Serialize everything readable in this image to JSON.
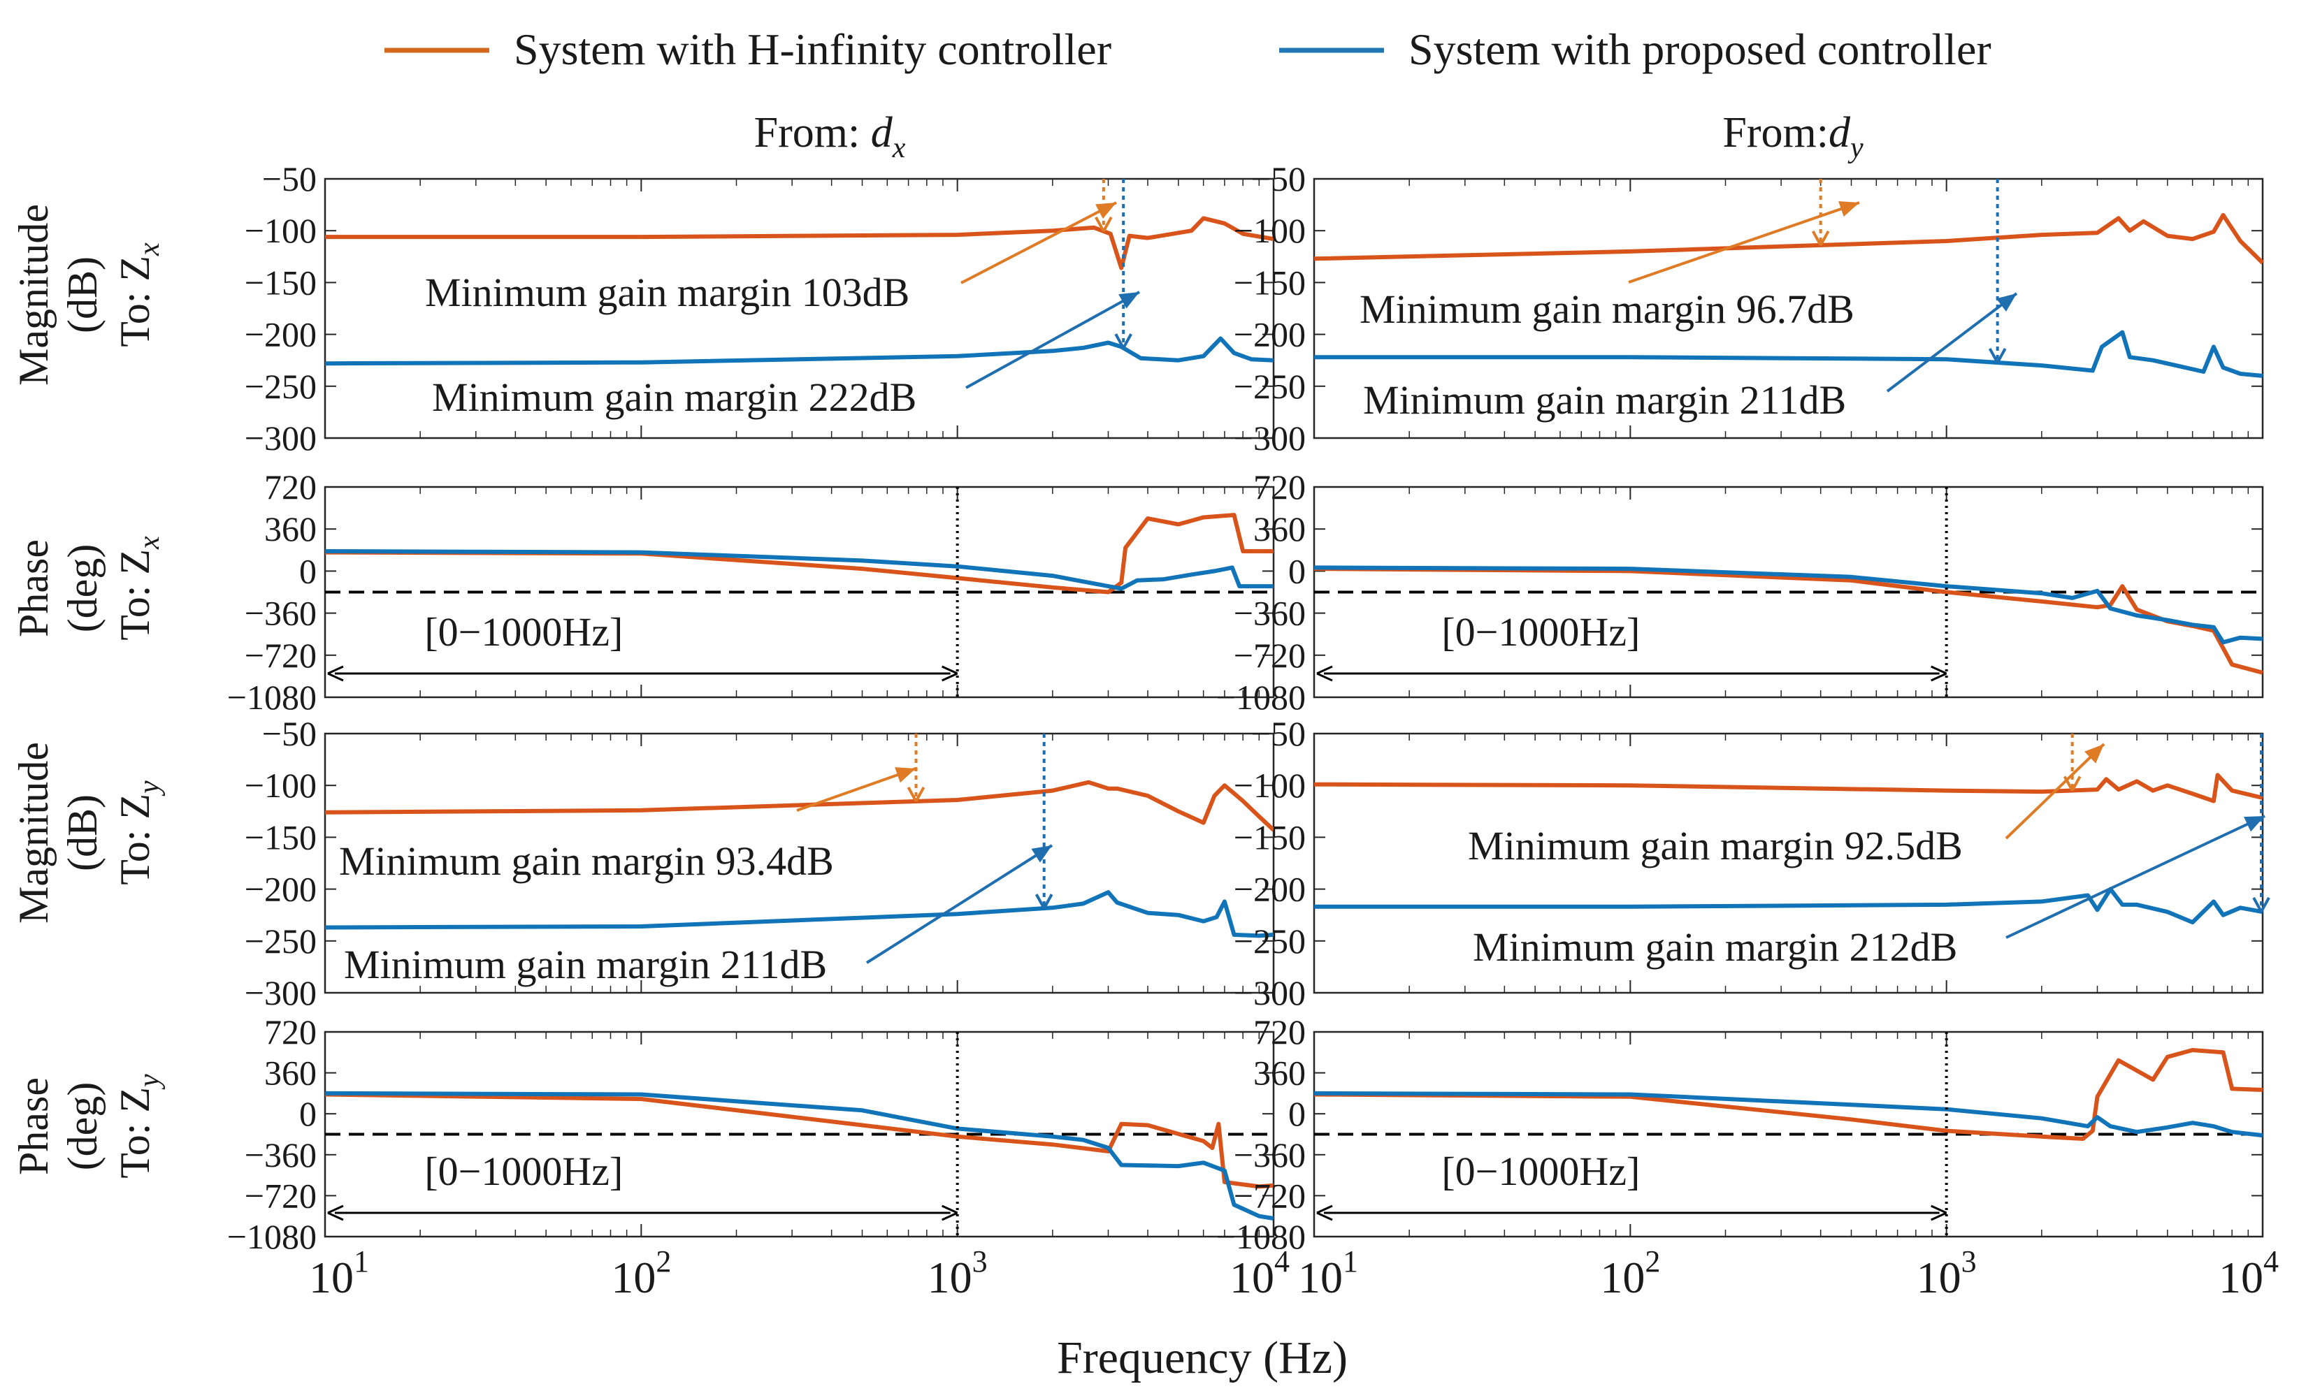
{
  "legend": [
    {
      "label": "System with H-infinity controller",
      "color": "#d2691e"
    },
    {
      "label": "System with proposed controller",
      "color": "#1f77b4"
    }
  ],
  "colors": {
    "hinf": "#d9541a",
    "prop": "#1173b8",
    "hinf_marker": "#e07b25",
    "prop_marker": "#1f6fb0",
    "range": "#000000"
  },
  "columns": [
    {
      "from_prefix": "From: ",
      "from_var": "d",
      "from_sub": "x"
    },
    {
      "from_prefix": "From:",
      "from_var": "d",
      "from_sub": "y"
    }
  ],
  "x_axis": {
    "label": "Frequency (Hz)",
    "ticks": [
      {
        "value": 10,
        "base": "10",
        "exp": "1"
      },
      {
        "value": 100,
        "base": "10",
        "exp": "2"
      },
      {
        "value": 1000,
        "base": "10",
        "exp": "3"
      },
      {
        "value": 10000,
        "base": "10",
        "exp": "4"
      }
    ]
  },
  "rows": [
    {
      "ylabel": "Magnitude",
      "yunit": "(dB)",
      "to_prefix": "To: ",
      "to_var": "Z",
      "to_sub": "x",
      "ylim": [
        -300,
        -50
      ],
      "ticks": [
        "−50",
        "−100",
        "−150",
        "−200",
        "−250",
        "−300"
      ]
    },
    {
      "ylabel": "Phase",
      "yunit": "(deg)",
      "to_prefix": "To: ",
      "to_var": "Z",
      "to_sub": "x",
      "ylim": [
        -1080,
        720
      ],
      "ticks": [
        "720",
        "360",
        "0",
        "−360",
        "−720",
        "−1080"
      ]
    },
    {
      "ylabel": "Magnitude",
      "yunit": "(dB)",
      "to_prefix": "To: ",
      "to_var": "Z",
      "to_sub": "y",
      "ylim": [
        -300,
        -50
      ],
      "ticks": [
        "−50",
        "−100",
        "−150",
        "−200",
        "−250",
        "−300"
      ]
    },
    {
      "ylabel": "Phase",
      "yunit": "(deg)",
      "to_prefix": "To: ",
      "to_var": "Z",
      "to_sub": "y",
      "ylim": [
        -1080,
        720
      ],
      "ticks": [
        "720",
        "360",
        "0",
        "−360",
        "−720",
        "−1080"
      ]
    }
  ],
  "chart_data": [
    {
      "type": "line",
      "title": "From: dx  To: Zx  Magnitude (dB)",
      "xscale": "log",
      "xlim": [
        10,
        10000
      ],
      "ylim": [
        -300,
        -50
      ],
      "series": [
        {
          "name": "System with H-infinity controller",
          "x": [
            10,
            100,
            1000,
            2000,
            2700,
            3050,
            3300,
            3500,
            4000,
            5500,
            6000,
            7000,
            8000,
            10000
          ],
          "y": [
            -106,
            -106,
            -104,
            -100,
            -97,
            -103,
            -136,
            -105,
            -107,
            -100,
            -88,
            -93,
            -103,
            -108
          ]
        },
        {
          "name": "System with proposed controller",
          "x": [
            10,
            100,
            1000,
            2000,
            2500,
            3000,
            3300,
            3800,
            5000,
            6000,
            6800,
            7500,
            8500,
            10000
          ],
          "y": [
            -228,
            -227,
            -221,
            -216,
            -213,
            -208,
            -212,
            -223,
            -225,
            -221,
            -204,
            -218,
            -224,
            -225
          ]
        }
      ],
      "annotations": [
        {
          "text": "Minimum gain margin 103dB",
          "series": "System with H-infinity controller",
          "x": 2900
        },
        {
          "text": "Minimum gain margin 222dB",
          "series": "System with proposed controller",
          "x": 3350
        }
      ]
    },
    {
      "type": "line",
      "title": "From: dx  To: Zx  Phase (deg)",
      "xscale": "log",
      "xlim": [
        10,
        10000
      ],
      "ylim": [
        -1080,
        720
      ],
      "series": [
        {
          "name": "System with H-infinity controller",
          "x": [
            10,
            100,
            500,
            1000,
            2000,
            3000,
            3300,
            3400,
            4000,
            5000,
            6000,
            7500,
            8000,
            10000
          ],
          "y": [
            160,
            150,
            20,
            -60,
            -140,
            -180,
            -100,
            200,
            450,
            400,
            460,
            480,
            170,
            170
          ]
        },
        {
          "name": "System with proposed controller",
          "x": [
            10,
            100,
            500,
            1000,
            2000,
            3000,
            3300,
            3700,
            4500,
            5500,
            6500,
            7400,
            7800,
            10000
          ],
          "y": [
            170,
            160,
            90,
            40,
            -40,
            -130,
            -150,
            -80,
            -70,
            -30,
            0,
            30,
            -130,
            -130
          ]
        }
      ],
      "reference_line": -180,
      "range_annotation": {
        "text": "[0−1000Hz]",
        "from": 10,
        "to": 1000
      }
    },
    {
      "type": "line",
      "title": "From: dx  To: Zy  Magnitude (dB)",
      "xscale": "log",
      "xlim": [
        10,
        10000
      ],
      "ylim": [
        -300,
        -50
      ],
      "series": [
        {
          "name": "System with H-infinity controller",
          "x": [
            10,
            100,
            1000,
            2000,
            2600,
            3000,
            3200,
            4000,
            5000,
            6000,
            6500,
            7000,
            8000,
            9000,
            10000
          ],
          "y": [
            -126,
            -124,
            -114,
            -105,
            -97,
            -103,
            -103,
            -110,
            -125,
            -136,
            -110,
            -100,
            -115,
            -130,
            -143
          ]
        },
        {
          "name": "System with proposed controller",
          "x": [
            10,
            100,
            1000,
            2000,
            2500,
            3000,
            3200,
            4000,
            5000,
            6000,
            6600,
            7000,
            7500,
            9000,
            10000
          ],
          "y": [
            -237,
            -236,
            -224,
            -218,
            -214,
            -203,
            -213,
            -223,
            -225,
            -231,
            -227,
            -212,
            -244,
            -245,
            -244
          ]
        }
      ],
      "annotations": [
        {
          "text": "Minimum gain margin 93.4dB",
          "series": "System with H-infinity controller",
          "x": 740
        },
        {
          "text": "Minimum gain margin 211dB",
          "series": "System with proposed controller",
          "x": 1880
        }
      ]
    },
    {
      "type": "line",
      "title": "From: dx  To: Zy  Phase (deg)",
      "xscale": "log",
      "xlim": [
        10,
        10000
      ],
      "ylim": [
        -1080,
        720
      ],
      "series": [
        {
          "name": "System with H-infinity controller",
          "x": [
            10,
            100,
            500,
            1000,
            2000,
            3000,
            3300,
            4000,
            6000,
            6400,
            6700,
            7000,
            9000,
            10000
          ],
          "y": [
            170,
            130,
            -100,
            -200,
            -270,
            -330,
            -90,
            -100,
            -240,
            -300,
            -90,
            -600,
            -640,
            -630
          ]
        },
        {
          "name": "System with proposed controller",
          "x": [
            10,
            100,
            500,
            1000,
            2000,
            2500,
            3000,
            3300,
            5000,
            6000,
            7000,
            7500,
            9000,
            10000
          ],
          "y": [
            180,
            170,
            30,
            -130,
            -200,
            -230,
            -300,
            -450,
            -460,
            -430,
            -500,
            -800,
            -900,
            -920
          ]
        }
      ],
      "reference_line": -180,
      "range_annotation": {
        "text": "[0−1000Hz]",
        "from": 10,
        "to": 1000
      }
    },
    {
      "type": "line",
      "title": "From: dy  To: Zx  Magnitude (dB)",
      "xscale": "log",
      "xlim": [
        10,
        10000
      ],
      "ylim": [
        -300,
        -50
      ],
      "series": [
        {
          "name": "System with H-infinity controller",
          "x": [
            10,
            100,
            1000,
            2000,
            3000,
            3500,
            3800,
            4200,
            5000,
            6000,
            7000,
            7500,
            8500,
            10000
          ],
          "y": [
            -127,
            -120,
            -110,
            -104,
            -102,
            -88,
            -100,
            -91,
            -105,
            -108,
            -101,
            -85,
            -110,
            -131
          ]
        },
        {
          "name": "System with proposed controller",
          "x": [
            10,
            100,
            1000,
            2000,
            2900,
            3100,
            3600,
            3800,
            4500,
            5500,
            6500,
            7000,
            7500,
            8500,
            10000
          ],
          "y": [
            -222,
            -222,
            -224,
            -230,
            -235,
            -212,
            -198,
            -222,
            -225,
            -231,
            -236,
            -212,
            -232,
            -238,
            -240
          ]
        }
      ],
      "annotations": [
        {
          "text": "Minimum gain margin 96.7dB",
          "series": "System with H-infinity controller",
          "x": 400
        },
        {
          "text": "Minimum gain margin 211dB",
          "series": "System with proposed controller",
          "x": 1450
        }
      ]
    },
    {
      "type": "line",
      "title": "From: dy  To: Zx  Phase (deg)",
      "xscale": "log",
      "xlim": [
        10,
        10000
      ],
      "ylim": [
        -1080,
        720
      ],
      "series": [
        {
          "name": "System with H-infinity controller",
          "x": [
            10,
            100,
            500,
            1000,
            2000,
            3000,
            3300,
            3600,
            4000,
            5000,
            6000,
            7000,
            8000,
            10000
          ],
          "y": [
            20,
            0,
            -80,
            -180,
            -260,
            -310,
            -290,
            -130,
            -330,
            -430,
            -470,
            -510,
            -800,
            -870
          ]
        },
        {
          "name": "System with proposed controller",
          "x": [
            10,
            100,
            500,
            1000,
            2000,
            2500,
            3000,
            3300,
            4000,
            5000,
            6000,
            7000,
            7500,
            8500,
            10000
          ],
          "y": [
            30,
            20,
            -50,
            -130,
            -190,
            -230,
            -170,
            -320,
            -380,
            -420,
            -460,
            -480,
            -610,
            -570,
            -580
          ]
        }
      ],
      "reference_line": -180,
      "range_annotation": {
        "text": "[0−1000Hz]",
        "from": 10,
        "to": 1000
      }
    },
    {
      "type": "line",
      "title": "From: dy  To: Zy  Magnitude (dB)",
      "xscale": "log",
      "xlim": [
        10,
        10000
      ],
      "ylim": [
        -300,
        -50
      ],
      "series": [
        {
          "name": "System with H-infinity controller",
          "x": [
            10,
            100,
            1000,
            2000,
            3000,
            3200,
            3500,
            4000,
            4500,
            5000,
            6000,
            7000,
            7200,
            8000,
            10000
          ],
          "y": [
            -99,
            -100,
            -105,
            -106,
            -104,
            -94,
            -104,
            -96,
            -105,
            -100,
            -108,
            -115,
            -90,
            -105,
            -112
          ]
        },
        {
          "name": "System with proposed controller",
          "x": [
            10,
            100,
            1000,
            2000,
            2800,
            3000,
            3300,
            3600,
            4000,
            5000,
            6000,
            7000,
            7500,
            8500,
            10000
          ],
          "y": [
            -217,
            -217,
            -215,
            -212,
            -206,
            -220,
            -200,
            -215,
            -215,
            -222,
            -232,
            -212,
            -225,
            -218,
            -222
          ]
        }
      ],
      "annotations": [
        {
          "text": "Minimum gain margin 92.5dB",
          "series": "System with H-infinity controller",
          "x": 2500
        },
        {
          "text": "Minimum gain margin 212dB",
          "series": "System with proposed controller",
          "x": 9900
        }
      ]
    },
    {
      "type": "line",
      "title": "From: dy  To: Zy  Phase (deg)",
      "xscale": "log",
      "xlim": [
        10,
        10000
      ],
      "ylim": [
        -1080,
        720
      ],
      "series": [
        {
          "name": "System with H-infinity controller",
          "x": [
            10,
            100,
            500,
            1000,
            2000,
            2700,
            2900,
            3000,
            3500,
            4500,
            5000,
            6000,
            7500,
            8000,
            10000
          ],
          "y": [
            170,
            150,
            -50,
            -150,
            -200,
            -220,
            -150,
            150,
            470,
            300,
            500,
            560,
            540,
            220,
            210
          ]
        },
        {
          "name": "System with proposed controller",
          "x": [
            10,
            100,
            500,
            1000,
            2000,
            2800,
            3000,
            3300,
            4000,
            5000,
            6000,
            7000,
            8000,
            10000
          ],
          "y": [
            180,
            170,
            80,
            40,
            -40,
            -110,
            -30,
            -110,
            -160,
            -120,
            -80,
            -110,
            -160,
            -190
          ]
        }
      ],
      "reference_line": -180,
      "range_annotation": {
        "text": "[0−1000Hz]",
        "from": 10,
        "to": 1000
      }
    }
  ]
}
